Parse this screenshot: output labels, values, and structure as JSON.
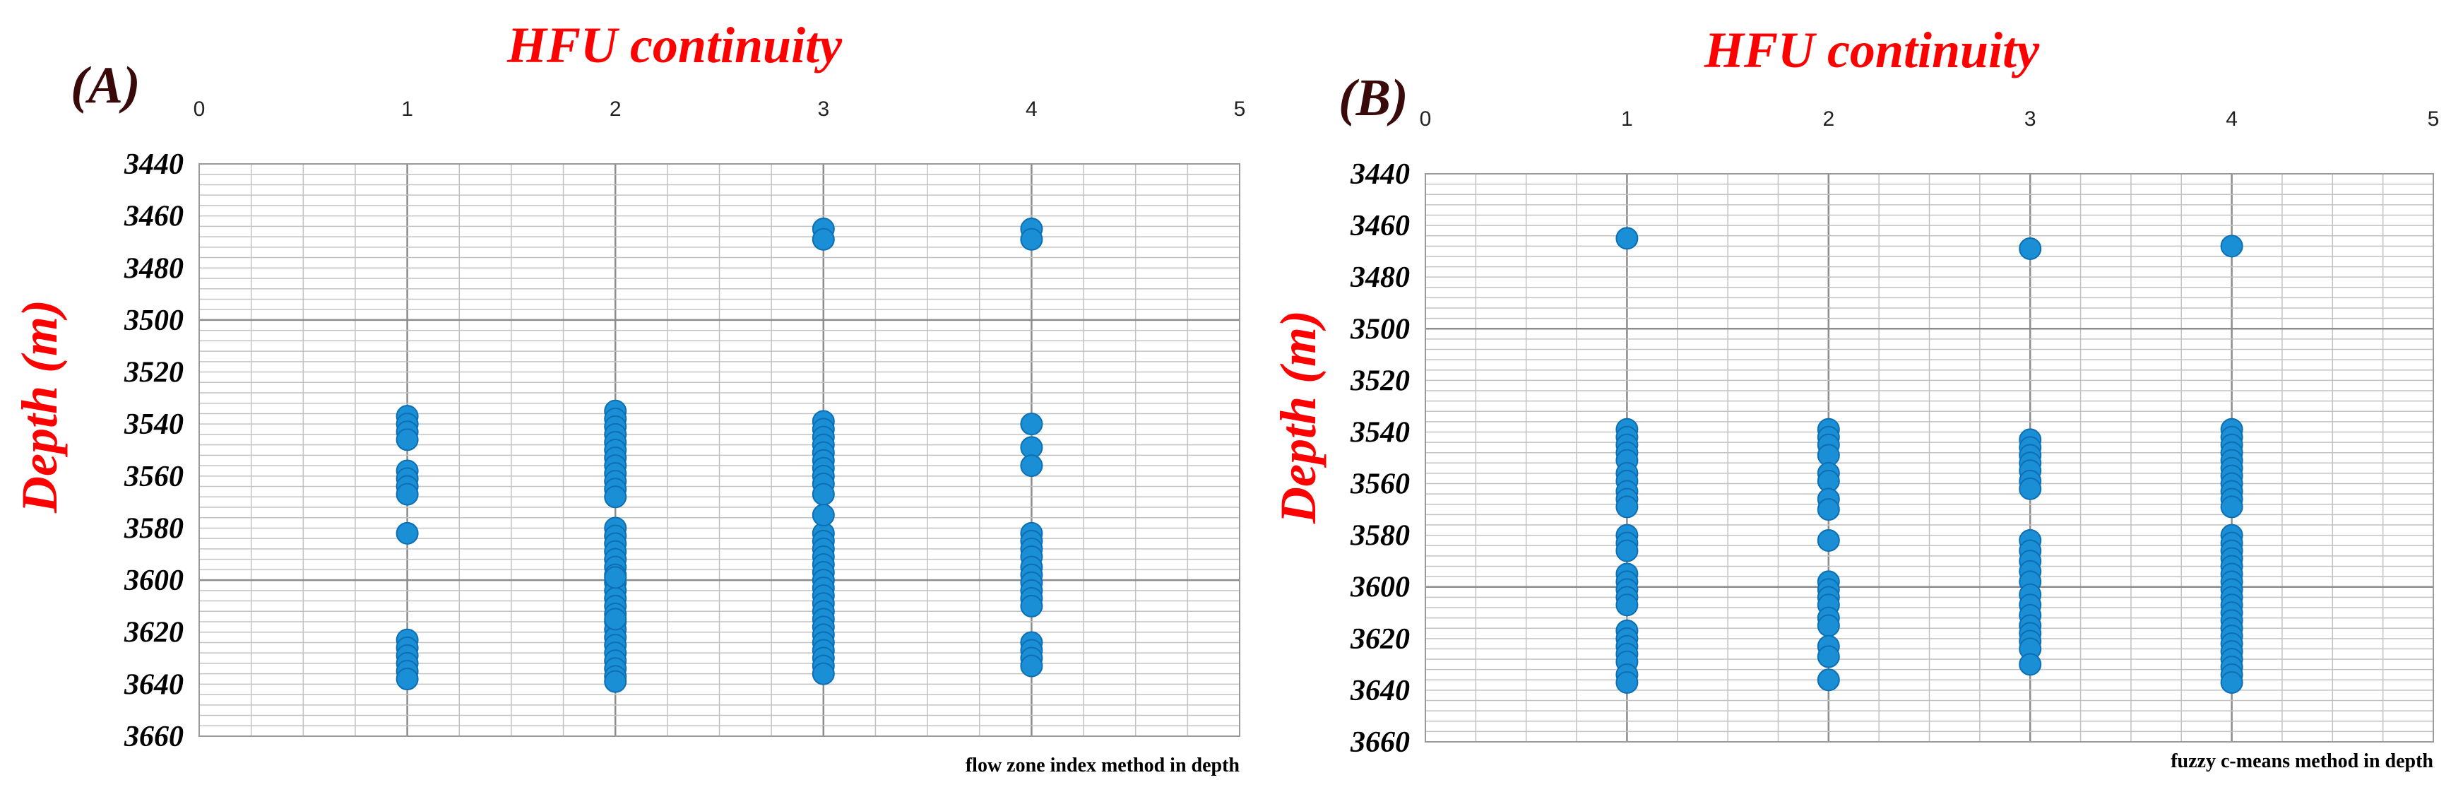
{
  "panels": [
    {
      "letter": "(A)",
      "title": "HFU continuity",
      "caption": "flow zone index method in depth",
      "ylabel": "Depth (m)"
    },
    {
      "letter": "(B)",
      "title": "HFU continuity",
      "caption": "fuzzy c-means method in depth",
      "ylabel": "Depth (m)"
    }
  ],
  "chart_data": [
    {
      "type": "scatter",
      "title": "HFU continuity",
      "xlabel": "flow zone index method in depth",
      "ylabel": "Depth (m)",
      "xlim": [
        0,
        5
      ],
      "ylim": [
        3440,
        3660
      ],
      "y_inverted": true,
      "x_axis_position": "top",
      "grid": true,
      "x_ticks": [
        0,
        1,
        2,
        3,
        4,
        5
      ],
      "y_ticks": [
        3440,
        3460,
        3480,
        3500,
        3520,
        3540,
        3560,
        3580,
        3600,
        3620,
        3640,
        3660
      ],
      "series": [
        {
          "x": [
            1,
            1,
            1,
            1,
            1,
            1,
            1,
            1,
            1,
            1,
            1,
            1,
            1,
            1,
            1
          ],
          "y": [
            3537,
            3540,
            3543,
            3546,
            3558,
            3561,
            3564,
            3567,
            3582,
            3623,
            3626,
            3629,
            3632,
            3635,
            3638
          ]
        },
        {
          "x": [
            2,
            2,
            2,
            2,
            2,
            2,
            2,
            2,
            2,
            2,
            2,
            2,
            2,
            2,
            2,
            2,
            2,
            2,
            2,
            2,
            2,
            2,
            2,
            2,
            2,
            2,
            2,
            2,
            2,
            2,
            2,
            2,
            2,
            2,
            2
          ],
          "y": [
            3535,
            3538,
            3541,
            3544,
            3547,
            3550,
            3553,
            3556,
            3559,
            3562,
            3565,
            3568,
            3580,
            3583,
            3586,
            3589,
            3592,
            3595,
            3598,
            3601,
            3604,
            3607,
            3610,
            3613,
            3616,
            3619,
            3622,
            3625,
            3628,
            3631,
            3634,
            3637,
            3639,
            3599,
            3615
          ]
        },
        {
          "x": [
            3,
            3,
            3,
            3,
            3,
            3,
            3,
            3,
            3,
            3,
            3,
            3,
            3,
            3,
            3,
            3,
            3,
            3,
            3,
            3,
            3,
            3,
            3,
            3,
            3,
            3,
            3,
            3,
            3,
            3,
            3,
            3
          ],
          "y": [
            3465,
            3469,
            3539,
            3542,
            3545,
            3548,
            3551,
            3554,
            3557,
            3560,
            3563,
            3582,
            3585,
            3588,
            3591,
            3594,
            3597,
            3600,
            3603,
            3606,
            3609,
            3612,
            3615,
            3618,
            3621,
            3624,
            3627,
            3630,
            3633,
            3636,
            3567,
            3575
          ]
        },
        {
          "x": [
            4,
            4,
            4,
            4,
            4,
            4,
            4,
            4,
            4,
            4,
            4,
            4,
            4,
            4,
            4,
            4,
            4,
            4,
            4
          ],
          "y": [
            3465,
            3469,
            3540,
            3549,
            3556,
            3582,
            3585,
            3588,
            3591,
            3595,
            3598,
            3601,
            3604,
            3607,
            3610,
            3624,
            3627,
            3630,
            3633
          ]
        }
      ]
    },
    {
      "type": "scatter",
      "title": "HFU continuity",
      "xlabel": "fuzzy c-means method in depth",
      "ylabel": "Depth (m)",
      "xlim": [
        0,
        5
      ],
      "ylim": [
        3440,
        3660
      ],
      "y_inverted": true,
      "x_axis_position": "top",
      "grid": true,
      "x_ticks": [
        0,
        1,
        2,
        3,
        4,
        5
      ],
      "y_ticks": [
        3440,
        3460,
        3480,
        3500,
        3520,
        3540,
        3560,
        3580,
        3600,
        3620,
        3640,
        3660
      ],
      "series": [
        {
          "x": [
            1,
            1,
            1,
            1,
            1,
            1,
            1,
            1,
            1,
            1,
            1,
            1,
            1,
            1,
            1,
            1,
            1,
            1,
            1,
            1,
            1,
            1,
            1,
            1,
            1,
            1
          ],
          "y": [
            3465,
            3539,
            3542,
            3545,
            3548,
            3551,
            3556,
            3559,
            3563,
            3566,
            3569,
            3580,
            3583,
            3586,
            3595,
            3598,
            3601,
            3604,
            3607,
            3617,
            3620,
            3623,
            3626,
            3629,
            3634,
            3637
          ]
        },
        {
          "x": [
            2,
            2,
            2,
            2,
            2,
            2,
            2,
            2,
            2,
            2,
            2,
            2,
            2,
            2,
            2,
            2,
            2,
            2
          ],
          "y": [
            3539,
            3542,
            3545,
            3549,
            3556,
            3559,
            3566,
            3570,
            3582,
            3598,
            3601,
            3604,
            3607,
            3612,
            3615,
            3623,
            3627,
            3636
          ]
        },
        {
          "x": [
            3,
            3,
            3,
            3,
            3,
            3,
            3,
            3,
            3,
            3,
            3,
            3,
            3,
            3,
            3,
            3,
            3,
            3,
            3,
            3,
            3
          ],
          "y": [
            3469,
            3543,
            3546,
            3549,
            3552,
            3555,
            3559,
            3562,
            3582,
            3586,
            3590,
            3594,
            3598,
            3603,
            3607,
            3611,
            3615,
            3618,
            3621,
            3624,
            3630
          ]
        },
        {
          "x": [
            4,
            4,
            4,
            4,
            4,
            4,
            4,
            4,
            4,
            4,
            4,
            4,
            4,
            4,
            4,
            4,
            4,
            4,
            4,
            4,
            4,
            4,
            4,
            4,
            4,
            4,
            4,
            4,
            4,
            4,
            4,
            4
          ],
          "y": [
            3468,
            3539,
            3542,
            3545,
            3548,
            3551,
            3554,
            3557,
            3560,
            3563,
            3566,
            3569,
            3580,
            3583,
            3586,
            3589,
            3592,
            3595,
            3598,
            3601,
            3604,
            3607,
            3610,
            3613,
            3616,
            3619,
            3622,
            3625,
            3628,
            3631,
            3634,
            3637
          ]
        }
      ]
    }
  ]
}
